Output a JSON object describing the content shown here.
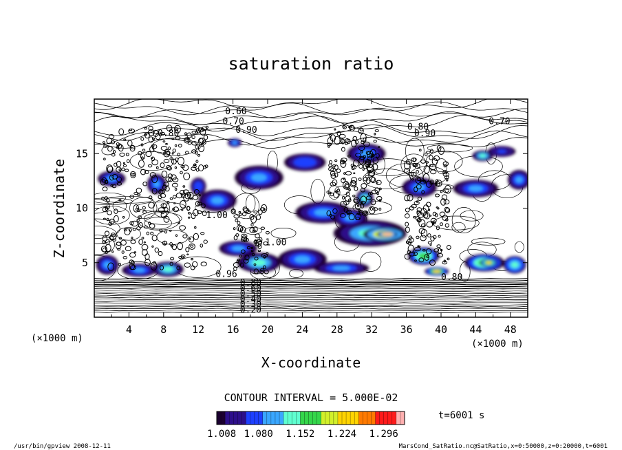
{
  "chart_data": {
    "type": "heatmap",
    "title": "saturation ratio",
    "xlabel": "X-coordinate",
    "ylabel": "Z-coordinate",
    "x_units": "(×1000 m)",
    "x_units_left": "(×1000 m)",
    "xlim": [
      0,
      50
    ],
    "ylim": [
      0,
      20
    ],
    "x_ticks": [
      4,
      8,
      12,
      16,
      20,
      24,
      28,
      32,
      36,
      40,
      44,
      48
    ],
    "y_ticks": [
      5,
      10,
      15
    ],
    "contour_interval_label": "CONTOUR INTERVAL = 5.000E-02",
    "time_label": "t=6001 s",
    "colorbar": {
      "min": 1.008,
      "max": 1.332,
      "tick_labels": [
        "1.008",
        "1.080",
        "1.152",
        "1.224",
        "1.296"
      ],
      "colors": [
        "#1b0030",
        "#2d0f8a",
        "#1e40ff",
        "#3aa7ff",
        "#5fffd0",
        "#34d64a",
        "#d2f02a",
        "#ffd400",
        "#ff7a00",
        "#ff1a1a",
        "#ffb0b0"
      ]
    },
    "contour_labels": [
      {
        "text": "0.60",
        "x": 15.1,
        "z": 18.6
      },
      {
        "text": "0.70",
        "x": 14.8,
        "z": 17.7
      },
      {
        "text": "0.90",
        "x": 16.3,
        "z": 16.9
      },
      {
        "text": "0.80",
        "x": 7.3,
        "z": 16.6
      },
      {
        "text": "0.80",
        "x": 36.1,
        "z": 17.2
      },
      {
        "text": "0.90",
        "x": 36.9,
        "z": 16.6
      },
      {
        "text": "0.70",
        "x": 45.5,
        "z": 17.7
      },
      {
        "text": "1.00",
        "x": 12.9,
        "z": 9.1
      },
      {
        "text": "1.00",
        "x": 19.7,
        "z": 6.6
      },
      {
        "text": "0.96",
        "x": 14.0,
        "z": 3.7
      },
      {
        "text": "0.80",
        "x": 40.0,
        "z": 3.4
      },
      {
        "text": "0.80",
        "x": 16.8,
        "z": 2.9
      },
      {
        "text": "0.60",
        "x": 16.8,
        "z": 2.4
      },
      {
        "text": "0.50",
        "x": 16.8,
        "z": 1.9
      },
      {
        "text": "0.40",
        "x": 16.8,
        "z": 1.4
      },
      {
        "text": "0.30",
        "x": 16.8,
        "z": 0.9
      },
      {
        "text": "0.20",
        "x": 16.8,
        "z": 0.4
      }
    ],
    "regions": [
      {
        "x": 1.5,
        "z": 4.8,
        "rx": 1.3,
        "rz": 0.9,
        "v": 1.1
      },
      {
        "x": 5.2,
        "z": 4.3,
        "rx": 2.0,
        "rz": 0.6,
        "v": 1.12
      },
      {
        "x": 8.5,
        "z": 4.4,
        "rx": 1.8,
        "rz": 0.7,
        "v": 1.13
      },
      {
        "x": 2.0,
        "z": 12.7,
        "rx": 1.6,
        "rz": 0.7,
        "v": 1.09
      },
      {
        "x": 7.2,
        "z": 12.2,
        "rx": 1.1,
        "rz": 0.9,
        "v": 1.12
      },
      {
        "x": 12.0,
        "z": 12.0,
        "rx": 0.9,
        "rz": 0.8,
        "v": 1.08
      },
      {
        "x": 14.2,
        "z": 10.7,
        "rx": 2.2,
        "rz": 1.0,
        "v": 1.1
      },
      {
        "x": 19.0,
        "z": 12.8,
        "rx": 2.8,
        "rz": 1.1,
        "v": 1.09
      },
      {
        "x": 24.3,
        "z": 14.2,
        "rx": 2.4,
        "rz": 0.8,
        "v": 1.08
      },
      {
        "x": 31.4,
        "z": 15.0,
        "rx": 2.2,
        "rz": 0.9,
        "v": 1.1
      },
      {
        "x": 26.4,
        "z": 9.6,
        "rx": 3.2,
        "rz": 1.0,
        "v": 1.09
      },
      {
        "x": 31.8,
        "z": 7.7,
        "rx": 4.2,
        "rz": 1.2,
        "v": 1.14
      },
      {
        "x": 33.5,
        "z": 7.6,
        "rx": 2.5,
        "rz": 0.65,
        "v": 1.27
      },
      {
        "x": 33.8,
        "z": 7.6,
        "rx": 1.2,
        "rz": 0.3,
        "v": 1.32
      },
      {
        "x": 29.5,
        "z": 9.1,
        "rx": 2.0,
        "rz": 0.8,
        "v": 1.11
      },
      {
        "x": 37.5,
        "z": 11.9,
        "rx": 2.0,
        "rz": 0.9,
        "v": 1.12
      },
      {
        "x": 44.0,
        "z": 11.8,
        "rx": 2.6,
        "rz": 0.8,
        "v": 1.09
      },
      {
        "x": 49.0,
        "z": 12.6,
        "rx": 1.3,
        "rz": 0.9,
        "v": 1.1
      },
      {
        "x": 47.0,
        "z": 15.2,
        "rx": 1.6,
        "rz": 0.5,
        "v": 1.07
      },
      {
        "x": 16.6,
        "z": 6.3,
        "rx": 2.2,
        "rz": 0.7,
        "v": 1.1
      },
      {
        "x": 19.0,
        "z": 5.0,
        "rx": 2.5,
        "rz": 0.9,
        "v": 1.13
      },
      {
        "x": 24.0,
        "z": 5.3,
        "rx": 2.8,
        "rz": 1.0,
        "v": 1.1
      },
      {
        "x": 28.5,
        "z": 4.5,
        "rx": 3.2,
        "rz": 0.6,
        "v": 1.12
      },
      {
        "x": 38.0,
        "z": 5.6,
        "rx": 1.8,
        "rz": 0.8,
        "v": 1.18
      },
      {
        "x": 39.5,
        "z": 4.2,
        "rx": 1.4,
        "rz": 0.4,
        "v": 1.22
      },
      {
        "x": 45.0,
        "z": 5.0,
        "rx": 2.3,
        "rz": 0.8,
        "v": 1.18
      },
      {
        "x": 45.5,
        "z": 5.0,
        "rx": 1.0,
        "rz": 0.4,
        "v": 1.24
      },
      {
        "x": 48.5,
        "z": 4.8,
        "rx": 1.3,
        "rz": 0.8,
        "v": 1.15
      },
      {
        "x": 31.2,
        "z": 10.9,
        "rx": 1.0,
        "rz": 0.8,
        "v": 1.14
      },
      {
        "x": 16.2,
        "z": 16.0,
        "rx": 0.8,
        "rz": 0.4,
        "v": 1.12
      },
      {
        "x": 44.8,
        "z": 14.8,
        "rx": 1.2,
        "rz": 0.5,
        "v": 1.13
      }
    ]
  },
  "footer": {
    "left": "/usr/bin/gpview   2008-12-11",
    "right": "MarsCond_SatRatio.nc@SatRatio,x=0:50000,z=0:20000,t=6001"
  }
}
